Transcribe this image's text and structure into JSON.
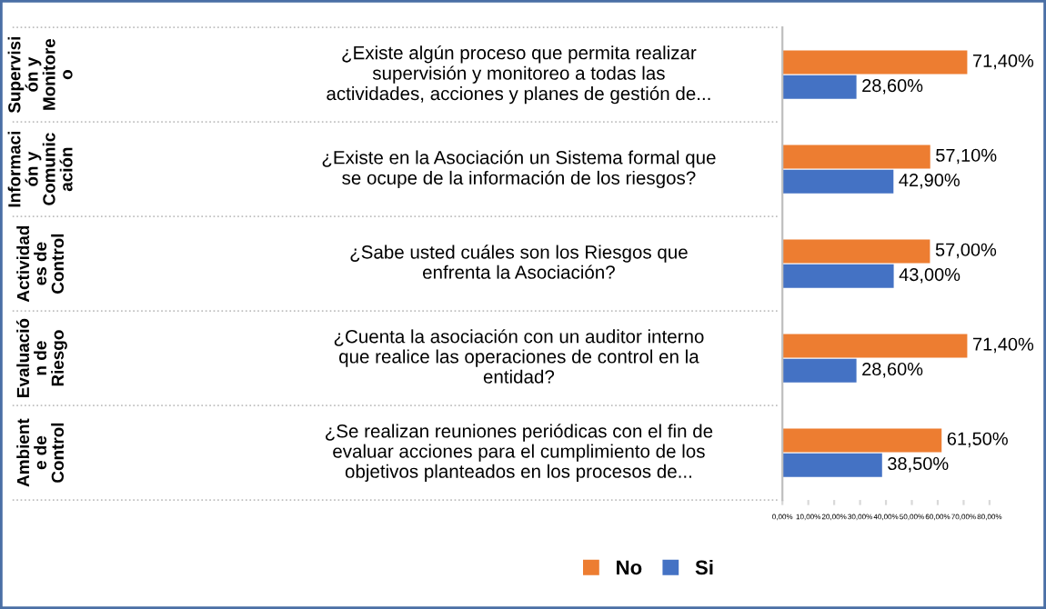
{
  "chart_data": {
    "type": "bar",
    "orientation": "horizontal",
    "categories": [
      "¿Existe algún proceso que permita realizar\nsupervisión y monitoreo a todas las\nactividades, acciones y planes de gestión de...",
      "¿Existe en la Asociación un Sistema formal que\nse ocupe de la información de los riesgos?",
      "¿Sabe usted cuáles son los Riesgos que\nenfrenta la Asociación?",
      "¿Cuenta la asociación con un auditor interno\nque realice las operaciones de control en la\nentidad?",
      "¿Se realizan reuniones periódicas con el fin de\nevaluar acciones para el cumplimiento de los\nobjetivos planteados en los procesos de..."
    ],
    "series": [
      {
        "name": "No",
        "color": "#ed7d31",
        "values": [
          71.4,
          57.1,
          57.0,
          71.4,
          61.5
        ],
        "value_labels": [
          "71,40%",
          "57,10%",
          "57,00%",
          "71,40%",
          "61,50%"
        ]
      },
      {
        "name": "Si",
        "color": "#4472c4",
        "values": [
          28.6,
          42.9,
          43.0,
          28.6,
          38.5
        ],
        "value_labels": [
          "28,60%",
          "42,90%",
          "43,00%",
          "28,60%",
          "38,50%"
        ]
      }
    ],
    "annotations": [
      "Supervisi\nón y\nMonitore\no",
      "Informaci\nón y\nComunic\nación",
      "Actividad\nes de\nControl",
      "Evaluació\nn de\nRiesgo",
      "Ambient\ne de\nControl"
    ],
    "xlim": [
      0,
      80
    ],
    "xticks": [
      {
        "value": 0,
        "label": "0,00%"
      },
      {
        "value": 10,
        "label": "10,00%"
      },
      {
        "value": 20,
        "label": "20,00%"
      },
      {
        "value": 30,
        "label": "30,00%"
      },
      {
        "value": 40,
        "label": "40,00%"
      },
      {
        "value": 50,
        "label": "50,00%"
      },
      {
        "value": 60,
        "label": "60,00%"
      },
      {
        "value": 70,
        "label": "70,00%"
      },
      {
        "value": 80,
        "label": "80,00%"
      }
    ],
    "grid": false,
    "legend": "bottom"
  }
}
